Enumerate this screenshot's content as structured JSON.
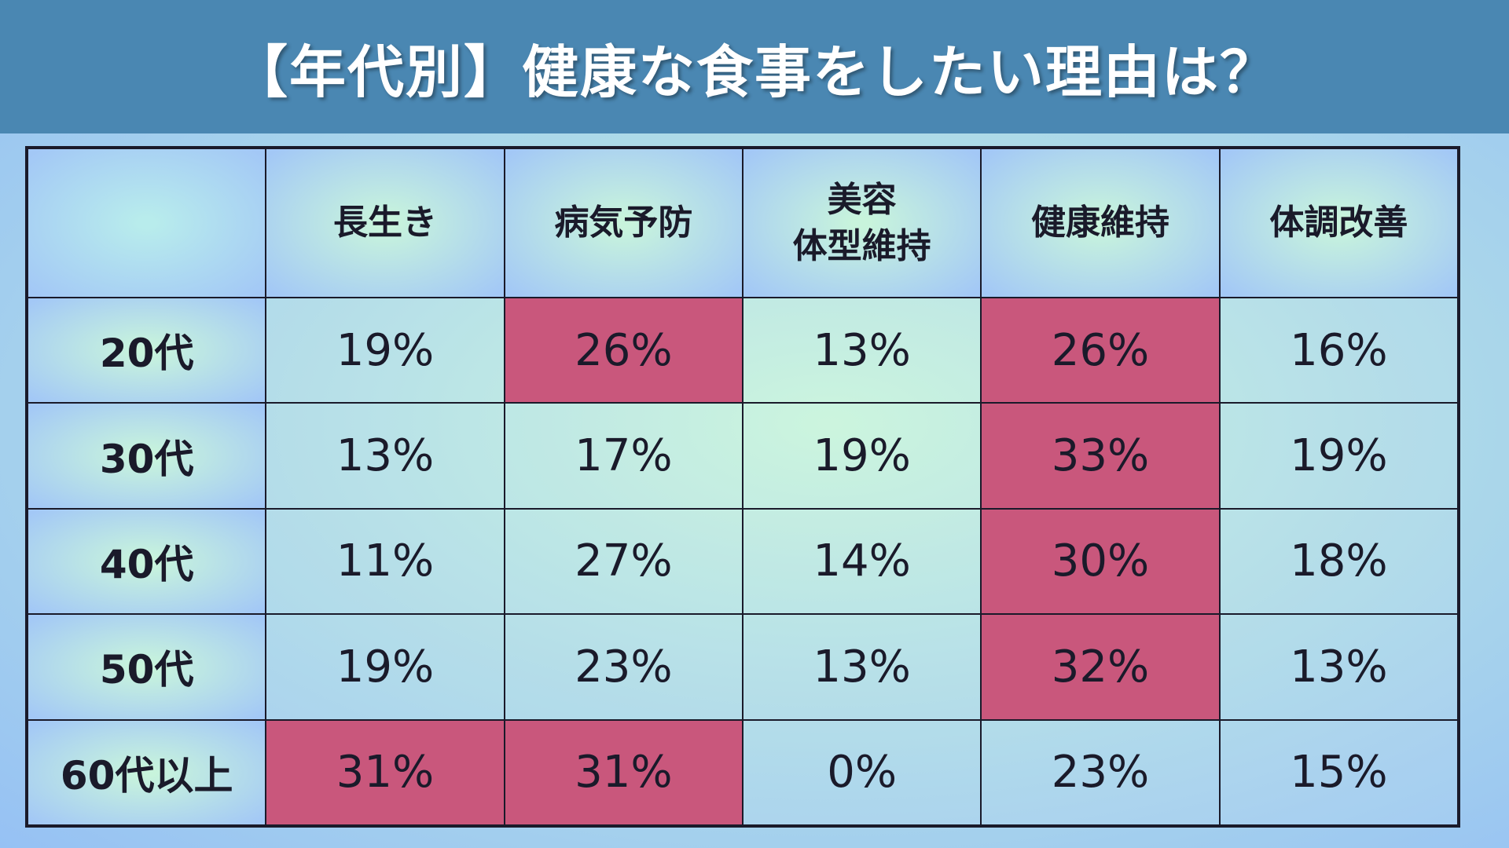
{
  "title": "【年代別】健康な食事をしたい理由は？",
  "highlight_color": "#c9577c",
  "chart_data": {
    "type": "table",
    "title": "【年代別】健康な食事をしたい理由は？",
    "columns": [
      "長生き",
      "病気予防",
      "美容\n体型維持",
      "健康維持",
      "体調改善"
    ],
    "rows": [
      {
        "label": "20代",
        "values": [
          "19%",
          "26%",
          "13%",
          "26%",
          "16%"
        ],
        "highlight": [
          false,
          true,
          false,
          true,
          false
        ]
      },
      {
        "label": "30代",
        "values": [
          "13%",
          "17%",
          "19%",
          "33%",
          "19%"
        ],
        "highlight": [
          false,
          false,
          false,
          true,
          false
        ]
      },
      {
        "label": "40代",
        "values": [
          "11%",
          "27%",
          "14%",
          "30%",
          "18%"
        ],
        "highlight": [
          false,
          false,
          false,
          true,
          false
        ]
      },
      {
        "label": "50代",
        "values": [
          "19%",
          "23%",
          "13%",
          "32%",
          "13%"
        ],
        "highlight": [
          false,
          false,
          false,
          true,
          false
        ]
      },
      {
        "label": "60代以上",
        "values": [
          "31%",
          "31%",
          "0%",
          "23%",
          "15%"
        ],
        "highlight": [
          true,
          true,
          false,
          false,
          false
        ]
      }
    ]
  }
}
